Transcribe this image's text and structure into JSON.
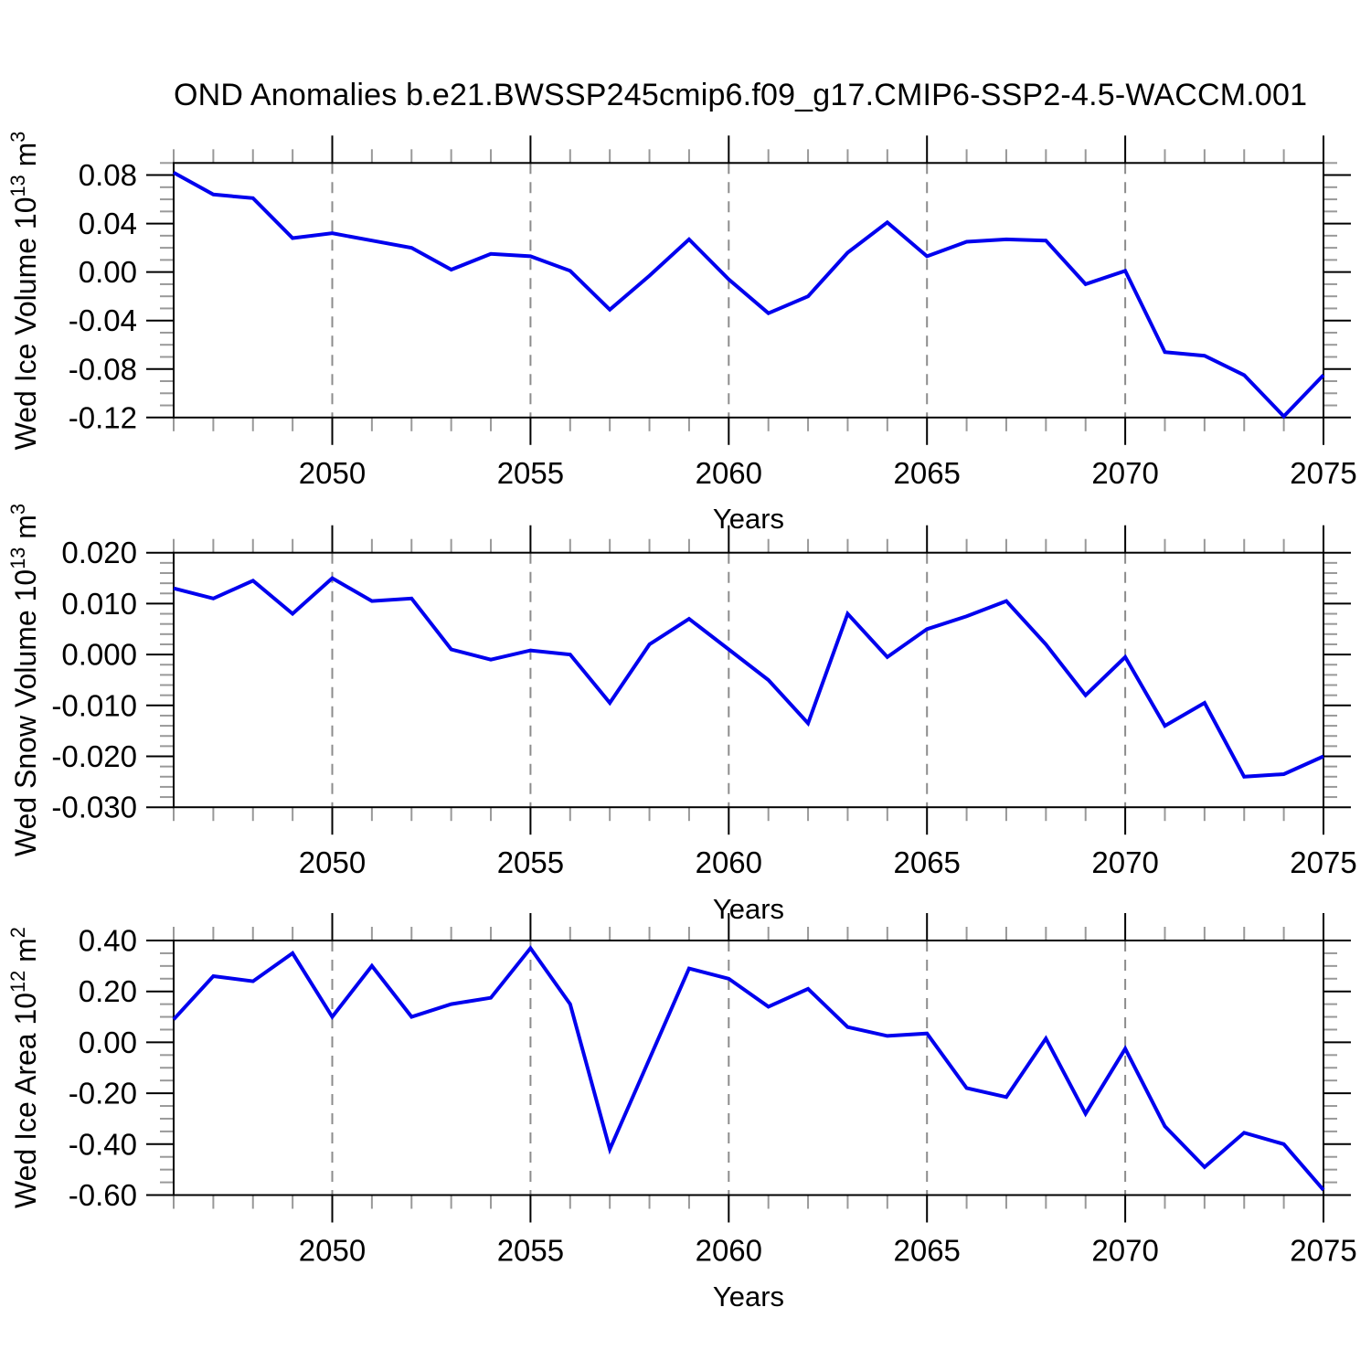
{
  "title": "OND Anomalies b.e21.BWSSP245cmip6.f09_g17.CMIP6-SSP2-4.5-WACCM.001",
  "colors": {
    "line": "#0000ee",
    "grid": "#8c8c8c",
    "axis": "#000000",
    "minor_tick": "#999999",
    "background": "#ffffff"
  },
  "chart_data": [
    {
      "type": "line",
      "name": "wed-ice-volume",
      "ylabel_plain": "Wed Ice Volume 10^13 m^3",
      "ylabel_parts": [
        {
          "text": "Wed Ice Volume 10"
        },
        {
          "text": "13",
          "sup": true
        },
        {
          "text": " m"
        },
        {
          "text": "3",
          "sup": true
        }
      ],
      "xlabel": "Years",
      "x_range": [
        2046,
        2075
      ],
      "x_major_ticks": [
        2050,
        2055,
        2060,
        2065,
        2070,
        2075
      ],
      "x_major_labels": [
        "2050",
        "2055",
        "2060",
        "2065",
        "2070",
        "2075"
      ],
      "x_minor_step": 1,
      "grid_x": [
        2050,
        2055,
        2060,
        2065,
        2070
      ],
      "ylim": [
        -0.12,
        0.09
      ],
      "y_major_ticks": [
        0.08,
        0.04,
        0.0,
        -0.04,
        -0.08,
        -0.12
      ],
      "y_major_labels": [
        "0.08",
        "0.04",
        "0.00",
        "-0.04",
        "-0.08",
        "-0.12"
      ],
      "y_minor_step": 0.01,
      "x": [
        2046,
        2047,
        2048,
        2049,
        2050,
        2051,
        2052,
        2053,
        2054,
        2055,
        2056,
        2057,
        2058,
        2059,
        2060,
        2061,
        2062,
        2063,
        2064,
        2065,
        2066,
        2067,
        2068,
        2069,
        2070,
        2071,
        2072,
        2073,
        2074,
        2075
      ],
      "values": [
        0.082,
        0.064,
        0.061,
        0.028,
        0.032,
        0.026,
        0.02,
        0.002,
        0.015,
        0.013,
        0.001,
        -0.031,
        -0.003,
        0.027,
        -0.006,
        -0.034,
        -0.02,
        0.016,
        0.041,
        0.013,
        0.025,
        0.027,
        0.026,
        -0.01,
        0.001,
        -0.066,
        -0.069,
        -0.085,
        -0.119,
        -0.085
      ]
    },
    {
      "type": "line",
      "name": "wed-snow-volume",
      "ylabel_plain": "Wed Snow Volume 10^13 m^3",
      "ylabel_parts": [
        {
          "text": "Wed Snow Volume 10"
        },
        {
          "text": "13",
          "sup": true
        },
        {
          "text": " m"
        },
        {
          "text": "3",
          "sup": true
        }
      ],
      "xlabel": "Years",
      "x_range": [
        2046,
        2075
      ],
      "x_major_ticks": [
        2050,
        2055,
        2060,
        2065,
        2070,
        2075
      ],
      "x_major_labels": [
        "2050",
        "2055",
        "2060",
        "2065",
        "2070",
        "2075"
      ],
      "x_minor_step": 1,
      "grid_x": [
        2050,
        2055,
        2060,
        2065,
        2070
      ],
      "ylim": [
        -0.03,
        0.02
      ],
      "y_major_ticks": [
        0.02,
        0.01,
        0.0,
        -0.01,
        -0.02,
        -0.03
      ],
      "y_major_labels": [
        "0.020",
        "0.010",
        "0.000",
        "-0.010",
        "-0.020",
        "-0.030"
      ],
      "y_minor_step": 0.002,
      "x": [
        2046,
        2047,
        2048,
        2049,
        2050,
        2051,
        2052,
        2053,
        2054,
        2055,
        2056,
        2057,
        2058,
        2059,
        2060,
        2061,
        2062,
        2063,
        2064,
        2065,
        2066,
        2067,
        2068,
        2069,
        2070,
        2071,
        2072,
        2073,
        2074,
        2075
      ],
      "values": [
        0.013,
        0.011,
        0.0145,
        0.008,
        0.015,
        0.0105,
        0.011,
        0.001,
        -0.001,
        0.0008,
        0.0,
        -0.0095,
        0.002,
        0.007,
        0.001,
        -0.005,
        -0.0135,
        0.008,
        -0.0005,
        0.005,
        0.0075,
        0.0105,
        0.002,
        -0.008,
        -0.0005,
        -0.014,
        -0.0095,
        -0.024,
        -0.0235,
        -0.02
      ]
    },
    {
      "type": "line",
      "name": "wed-ice-area",
      "ylabel_plain": "Wed Ice Area 10^12 m^2",
      "ylabel_parts": [
        {
          "text": "Wed Ice Area 10"
        },
        {
          "text": "12",
          "sup": true
        },
        {
          "text": " m"
        },
        {
          "text": "2",
          "sup": true
        }
      ],
      "xlabel": "Years",
      "x_range": [
        2046,
        2075
      ],
      "x_major_ticks": [
        2050,
        2055,
        2060,
        2065,
        2070,
        2075
      ],
      "x_major_labels": [
        "2050",
        "2055",
        "2060",
        "2065",
        "2070",
        "2075"
      ],
      "x_minor_step": 1,
      "grid_x": [
        2050,
        2055,
        2060,
        2065,
        2070
      ],
      "ylim": [
        -0.6,
        0.4
      ],
      "y_major_ticks": [
        0.4,
        0.2,
        0.0,
        -0.2,
        -0.4,
        -0.6
      ],
      "y_major_labels": [
        "0.40",
        "0.20",
        "0.00",
        "-0.20",
        "-0.40",
        "-0.60"
      ],
      "y_minor_step": 0.05,
      "x": [
        2046,
        2047,
        2048,
        2049,
        2050,
        2051,
        2052,
        2053,
        2054,
        2055,
        2056,
        2057,
        2058,
        2059,
        2060,
        2061,
        2062,
        2063,
        2064,
        2065,
        2066,
        2067,
        2068,
        2069,
        2070,
        2071,
        2072,
        2073,
        2074,
        2075
      ],
      "values": [
        0.09,
        0.26,
        0.24,
        0.35,
        0.1,
        0.3,
        0.1,
        0.15,
        0.175,
        0.37,
        0.15,
        -0.42,
        -0.065,
        0.29,
        0.25,
        0.14,
        0.21,
        0.06,
        0.025,
        0.035,
        -0.18,
        -0.215,
        0.015,
        -0.28,
        -0.025,
        -0.33,
        -0.49,
        -0.355,
        -0.4,
        -0.58
      ]
    }
  ]
}
